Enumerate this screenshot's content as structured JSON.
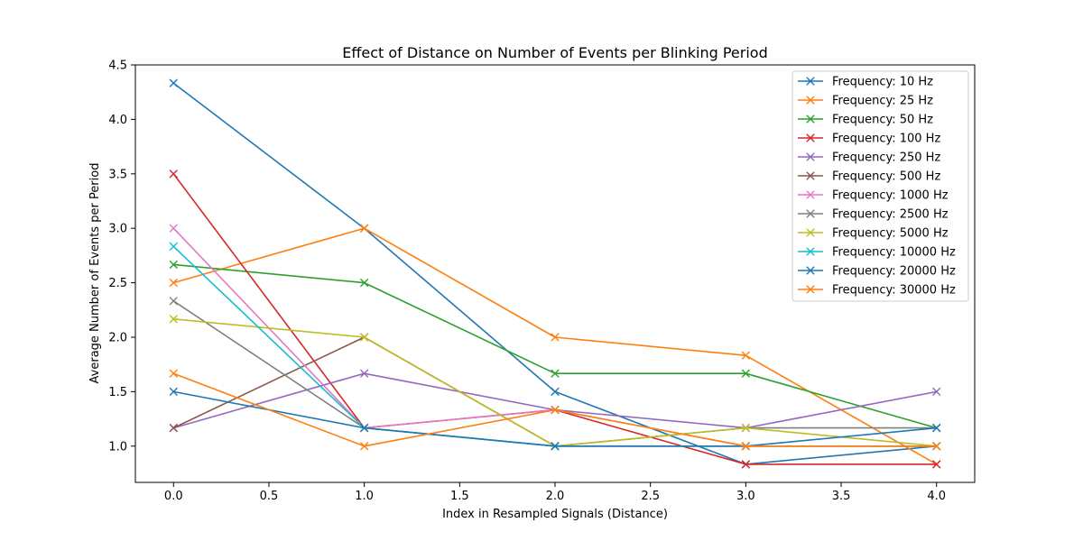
{
  "chart_data": {
    "type": "line",
    "title": "Effect of Distance on Number of Events per Blinking Period",
    "xlabel": "Index in Resampled Signals (Distance)",
    "ylabel": "Average Number of Events per Period",
    "xlim": [
      -0.2,
      4.2
    ],
    "ylim": [
      0.667,
      4.5
    ],
    "xticks": [
      0.0,
      0.5,
      1.0,
      1.5,
      2.0,
      2.5,
      3.0,
      3.5,
      4.0
    ],
    "xtick_labels": [
      "0.0",
      "0.5",
      "1.0",
      "1.5",
      "2.0",
      "2.5",
      "3.0",
      "3.5",
      "4.0"
    ],
    "yticks": [
      1.0,
      1.5,
      2.0,
      2.5,
      3.0,
      3.5,
      4.0,
      4.5
    ],
    "ytick_labels": [
      "1.0",
      "1.5",
      "2.0",
      "2.5",
      "3.0",
      "3.5",
      "4.0",
      "4.5"
    ],
    "grid": false,
    "legend_position": "top-right",
    "marker": "x",
    "x": [
      0,
      1,
      2,
      3,
      4
    ],
    "series": [
      {
        "name": "Frequency: 10 Hz",
        "color": "#1f77b4",
        "values": [
          4.333,
          3.0,
          1.5,
          0.833,
          1.0
        ]
      },
      {
        "name": "Frequency: 25 Hz",
        "color": "#ff7f0e",
        "values": [
          2.5,
          3.0,
          2.0,
          1.833,
          0.833
        ]
      },
      {
        "name": "Frequency: 50 Hz",
        "color": "#2ca02c",
        "values": [
          2.667,
          2.5,
          1.667,
          1.667,
          1.167
        ]
      },
      {
        "name": "Frequency: 100 Hz",
        "color": "#d62728",
        "values": [
          3.5,
          1.167,
          1.333,
          0.833,
          0.833
        ]
      },
      {
        "name": "Frequency: 250 Hz",
        "color": "#9467bd",
        "values": [
          1.167,
          1.667,
          1.333,
          1.167,
          1.5
        ]
      },
      {
        "name": "Frequency: 500 Hz",
        "color": "#8c564b",
        "values": [
          1.167,
          2.0,
          1.0,
          1.0,
          1.0
        ]
      },
      {
        "name": "Frequency: 1000 Hz",
        "color": "#e377c2",
        "values": [
          3.0,
          1.167,
          1.333,
          1.0,
          1.0
        ]
      },
      {
        "name": "Frequency: 2500 Hz",
        "color": "#7f7f7f",
        "values": [
          2.333,
          1.167,
          1.0,
          1.167,
          1.167
        ]
      },
      {
        "name": "Frequency: 5000 Hz",
        "color": "#bcbd22",
        "values": [
          2.167,
          2.0,
          1.0,
          1.167,
          1.0
        ]
      },
      {
        "name": "Frequency: 10000 Hz",
        "color": "#17becf",
        "values": [
          2.833,
          1.167,
          1.0,
          1.0,
          1.0
        ]
      },
      {
        "name": "Frequency: 20000 Hz",
        "color": "#1f77b4",
        "values": [
          1.5,
          1.167,
          1.0,
          1.0,
          1.167
        ]
      },
      {
        "name": "Frequency: 30000 Hz",
        "color": "#ff7f0e",
        "values": [
          1.667,
          1.0,
          1.333,
          1.0,
          1.0
        ]
      }
    ]
  }
}
